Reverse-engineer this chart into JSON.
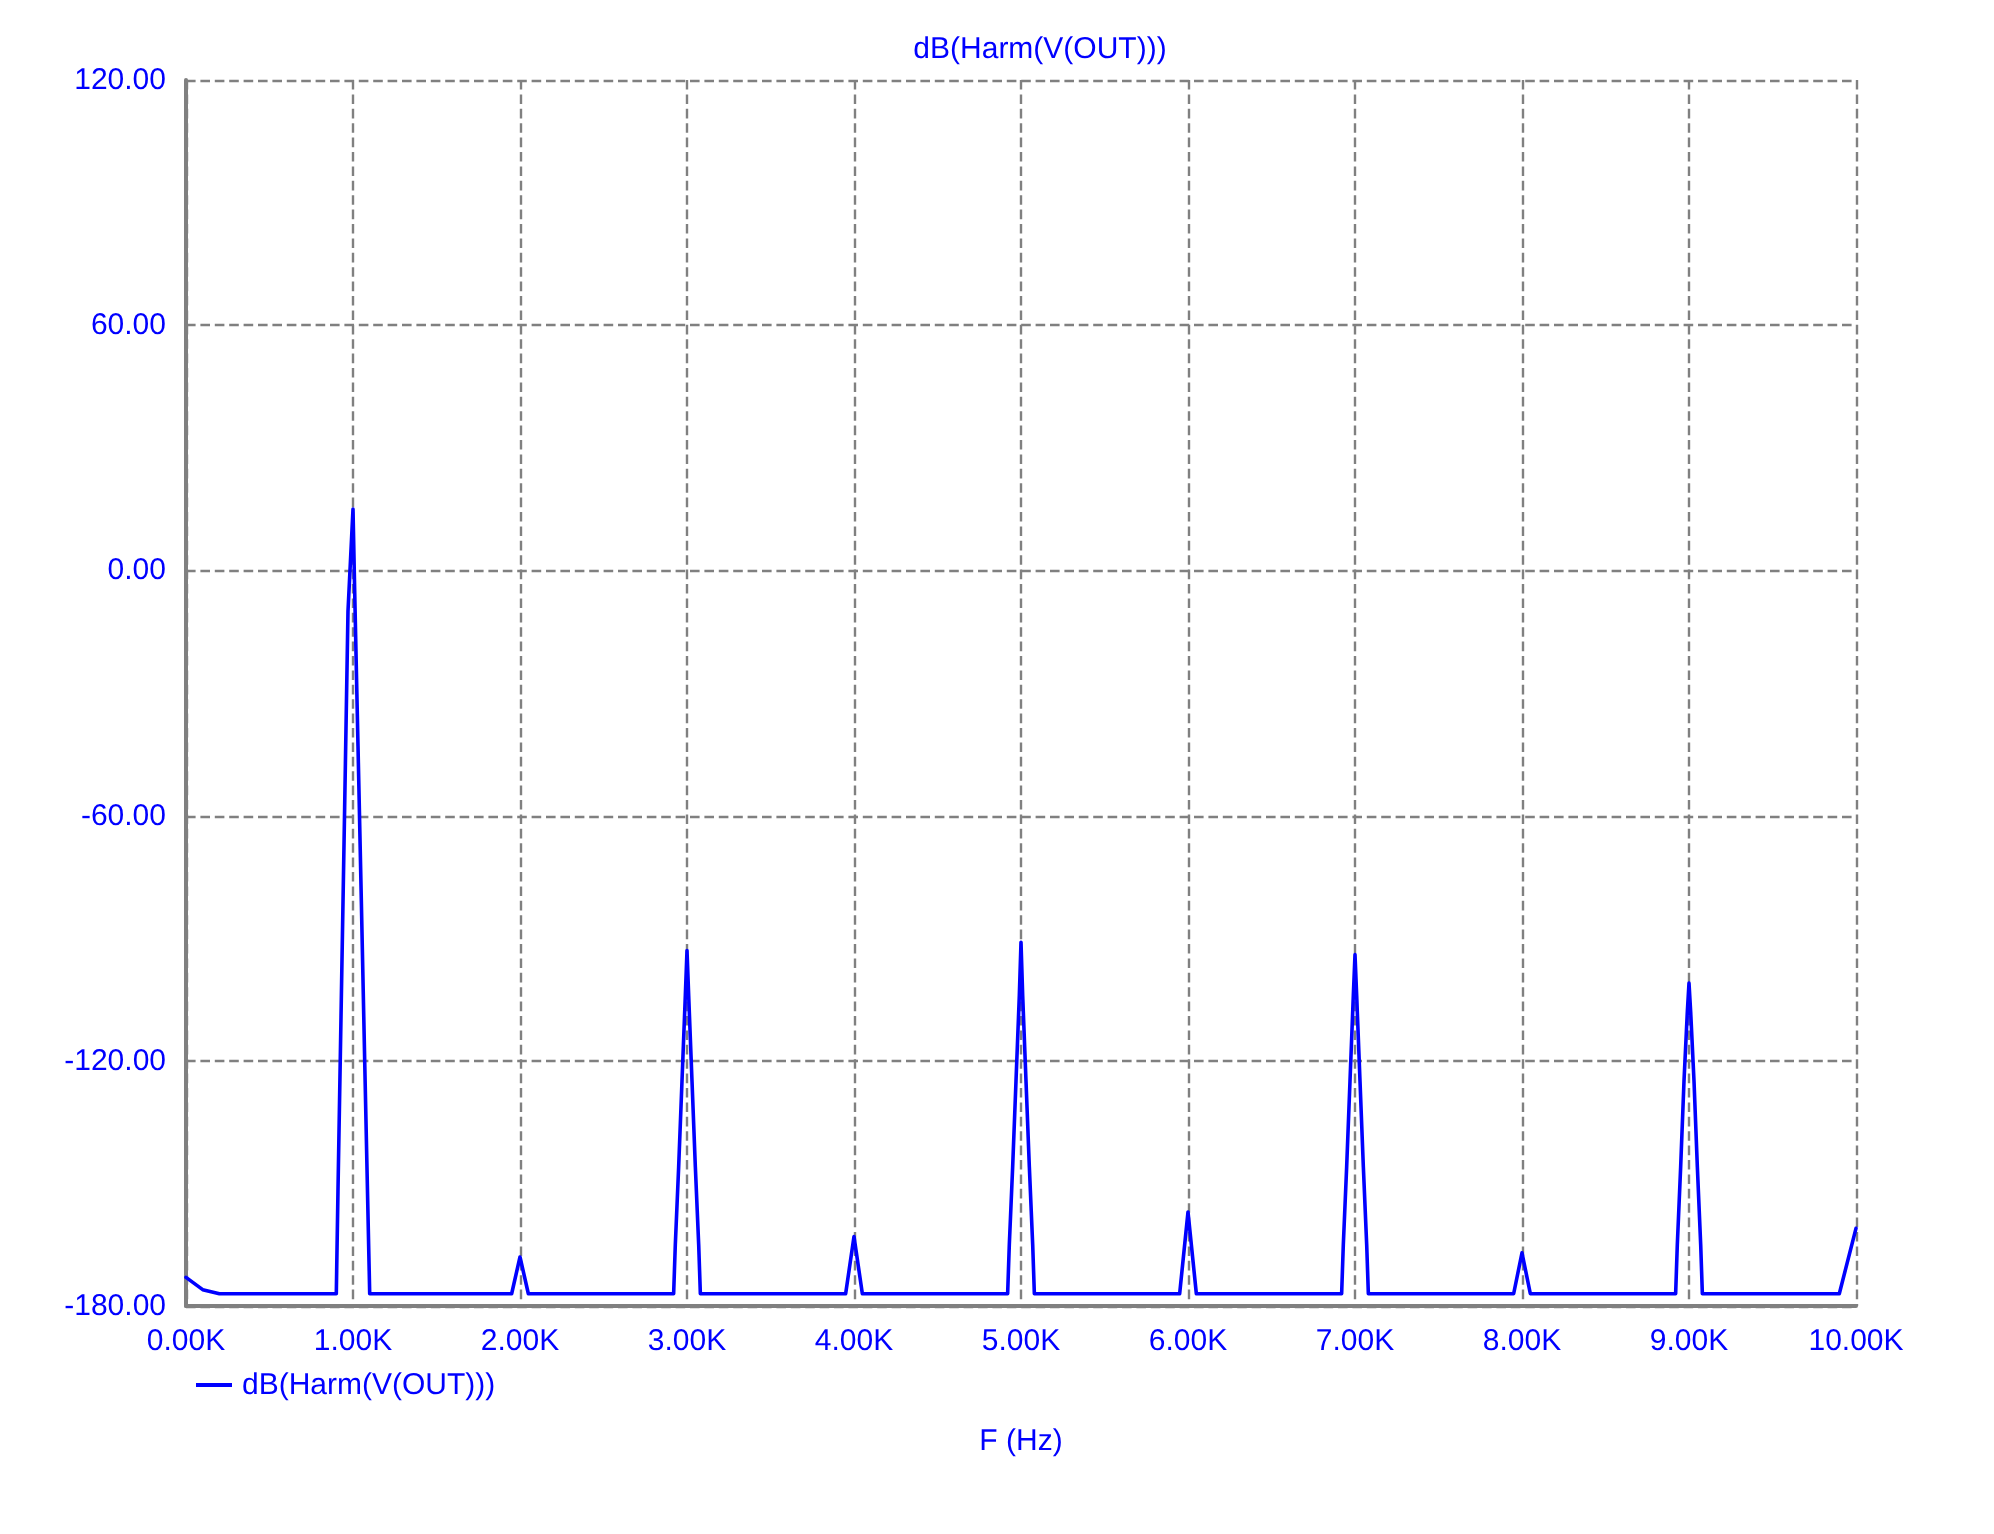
{
  "chart_data": {
    "type": "line",
    "title": "dB(Harm(V(OUT)))",
    "xlabel": "F (Hz)",
    "xlim": [
      0,
      10000
    ],
    "xticks": [
      {
        "value": 0,
        "label": "0.00K"
      },
      {
        "value": 1000,
        "label": "1.00K"
      },
      {
        "value": 2000,
        "label": "2.00K"
      },
      {
        "value": 3000,
        "label": "3.00K"
      },
      {
        "value": 4000,
        "label": "4.00K"
      },
      {
        "value": 5000,
        "label": "5.00K"
      },
      {
        "value": 6000,
        "label": "6.00K"
      },
      {
        "value": 7000,
        "label": "7.00K"
      },
      {
        "value": 8000,
        "label": "8.00K"
      },
      {
        "value": 9000,
        "label": "9.00K"
      },
      {
        "value": 10000,
        "label": "10.00K"
      }
    ],
    "ylim": [
      -180,
      120
    ],
    "yticks": [
      {
        "value": -180,
        "label": "-180.00"
      },
      {
        "value": -120,
        "label": "-120.00"
      },
      {
        "value": -60,
        "label": "-60.00"
      },
      {
        "value": 0,
        "label": "0.00"
      },
      {
        "value": 60,
        "label": "60.00"
      },
      {
        "value": 120,
        "label": "120.00"
      }
    ],
    "grid": true,
    "legend": "bottom left",
    "marker": "none",
    "line_style": "solid",
    "series": [
      {
        "name": "dB(Harm(V(OUT)))",
        "color": "#0000ff",
        "x": [
          0,
          100,
          200,
          900,
          910,
          930,
          950,
          970,
          1000,
          1010,
          1030,
          1050,
          1070,
          1100,
          1950,
          2000,
          2050,
          2920,
          2930,
          2950,
          2970,
          2990,
          3000,
          3010,
          3030,
          3050,
          3070,
          3080,
          3950,
          4000,
          4050,
          4920,
          4930,
          4950,
          4970,
          4990,
          5000,
          5010,
          5030,
          5050,
          5070,
          5080,
          5950,
          6000,
          6050,
          6920,
          6930,
          6950,
          6970,
          6990,
          7000,
          7010,
          7030,
          7050,
          7070,
          7080,
          7950,
          8000,
          8050,
          8920,
          8930,
          8950,
          8970,
          8990,
          9000,
          9010,
          9030,
          9050,
          9070,
          9080,
          9900,
          10000
        ],
        "values": [
          -173,
          -176,
          -177,
          -177,
          -152,
          -105,
          -58,
          -10,
          15,
          -5,
          -43,
          -81,
          -120,
          -177,
          -177,
          -168,
          -177,
          -177,
          -165,
          -146,
          -125,
          -104,
          -93,
          -104,
          -125,
          -146,
          -165,
          -177,
          -177,
          -163,
          -177,
          -177,
          -165,
          -146,
          -125,
          -104,
          -91,
          -104,
          -125,
          -146,
          -165,
          -177,
          -177,
          -157,
          -177,
          -177,
          -165,
          -146,
          -125,
          -104,
          -94,
          -104,
          -125,
          -146,
          -165,
          -177,
          -177,
          -167,
          -177,
          -177,
          -165,
          -146,
          -125,
          -108,
          -101,
          -108,
          -125,
          -146,
          -165,
          -177,
          -177,
          -161
        ]
      }
    ]
  }
}
